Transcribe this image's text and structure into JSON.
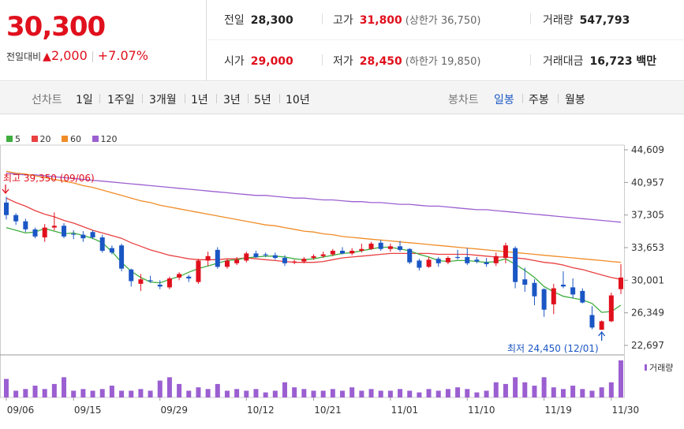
{
  "quote": {
    "price": "30,300",
    "change_label": "전일대비",
    "change_arrow": "▲",
    "change_amount": "2,000",
    "change_percent": "+7.07%",
    "prev_close": {
      "label": "전일",
      "value": "28,300"
    },
    "high": {
      "label": "고가",
      "value": "31,800",
      "limit": "(상한가 36,750)"
    },
    "volume": {
      "label": "거래량",
      "value": "547,793"
    },
    "open": {
      "label": "시가",
      "value": "29,000"
    },
    "low": {
      "label": "저가",
      "value": "28,450",
      "limit": "(하한가 19,850)"
    },
    "amount": {
      "label": "거래대금",
      "value": "16,723 백만"
    }
  },
  "period_bar": {
    "line_label": "선차트",
    "line_options": [
      "1일",
      "1주일",
      "3개월",
      "1년",
      "3년",
      "5년",
      "10년"
    ],
    "candle_label": "봉차트",
    "candle_options": [
      "일봉",
      "주봉",
      "월봉"
    ],
    "candle_selected": "일봉"
  },
  "legend": [
    {
      "label": "5",
      "color": "#3fae3f"
    },
    {
      "label": "20",
      "color": "#e94141"
    },
    {
      "label": "60",
      "color": "#f08c28"
    },
    {
      "label": "120",
      "color": "#9b5fd1"
    }
  ],
  "colors": {
    "up": "#e0101d",
    "down": "#1a56c4",
    "volume": "#9b5fd1"
  },
  "annotations": {
    "high": "최고 39,350 (09/06)",
    "low": "최저 24,450 (12/01)"
  },
  "chart_data": {
    "type": "candlestick",
    "y_ticks": [
      "44,609",
      "40,957",
      "37,305",
      "33,653",
      "30,001",
      "26,349",
      "22,697"
    ],
    "y_tick_values": [
      44609,
      40957,
      37305,
      33653,
      30001,
      26349,
      22697
    ],
    "x_tick_labels": [
      "09/06",
      "09/15",
      "09/29",
      "10/12",
      "10/21",
      "11/01",
      "11/10",
      "11/19",
      "11/30"
    ],
    "volume_label": "거래량",
    "ylim": [
      22000,
      45300
    ],
    "candles": [
      [
        38700,
        39350,
        36800,
        37300
      ],
      [
        37300,
        37500,
        36200,
        36600
      ],
      [
        36600,
        36900,
        35400,
        35700
      ],
      [
        35700,
        35900,
        34700,
        34900
      ],
      [
        34800,
        36300,
        34300,
        35900
      ],
      [
        35900,
        37600,
        35600,
        36100
      ],
      [
        36100,
        36400,
        34700,
        34900
      ],
      [
        35200,
        35600,
        34600,
        35100
      ],
      [
        35100,
        35500,
        34300,
        34700
      ],
      [
        35400,
        35600,
        34600,
        34800
      ],
      [
        34800,
        35100,
        33100,
        33300
      ],
      [
        33600,
        33900,
        32900,
        33100
      ],
      [
        33900,
        34100,
        31000,
        31300
      ],
      [
        31200,
        31300,
        29300,
        29900
      ],
      [
        29600,
        30700,
        28800,
        30100
      ],
      [
        30000,
        30500,
        29700,
        29900
      ],
      [
        29500,
        30000,
        29000,
        29300
      ],
      [
        29200,
        30400,
        29000,
        30200
      ],
      [
        30300,
        30900,
        30000,
        30700
      ],
      [
        30400,
        30600,
        29800,
        30200
      ],
      [
        29800,
        32400,
        29600,
        32200
      ],
      [
        32200,
        33200,
        31600,
        32700
      ],
      [
        33400,
        33700,
        31300,
        31500
      ],
      [
        31500,
        32400,
        31300,
        32200
      ],
      [
        31900,
        32600,
        31700,
        32300
      ],
      [
        32200,
        33200,
        32000,
        33000
      ],
      [
        33000,
        33300,
        32500,
        32600
      ],
      [
        32900,
        33100,
        32600,
        32800
      ],
      [
        32800,
        33100,
        32300,
        32500
      ],
      [
        32500,
        32800,
        31600,
        31900
      ],
      [
        32100,
        32300,
        31800,
        32100
      ],
      [
        32100,
        32600,
        31900,
        32400
      ],
      [
        32500,
        32900,
        32300,
        32700
      ],
      [
        32700,
        33200,
        32500,
        32900
      ],
      [
        32900,
        33500,
        32700,
        33300
      ],
      [
        33300,
        33700,
        32900,
        33000
      ],
      [
        33000,
        33600,
        32800,
        33300
      ],
      [
        33300,
        34100,
        33100,
        33500
      ],
      [
        33500,
        34300,
        33400,
        34100
      ],
      [
        34200,
        34500,
        33300,
        33500
      ],
      [
        33500,
        34100,
        33200,
        33800
      ],
      [
        33800,
        34400,
        33200,
        33400
      ],
      [
        33500,
        33600,
        31800,
        32000
      ],
      [
        32200,
        32400,
        31100,
        31400
      ],
      [
        31500,
        32600,
        31400,
        32300
      ],
      [
        32400,
        32600,
        31500,
        31900
      ],
      [
        32000,
        32700,
        31800,
        32500
      ],
      [
        32600,
        33400,
        32300,
        32500
      ],
      [
        32600,
        33600,
        31700,
        31900
      ],
      [
        32300,
        32600,
        31900,
        32100
      ],
      [
        32000,
        32500,
        31500,
        31800
      ],
      [
        31900,
        33100,
        31600,
        32700
      ],
      [
        32500,
        34200,
        31900,
        33900
      ],
      [
        33600,
        33800,
        29100,
        29800
      ],
      [
        30100,
        31400,
        28700,
        29500
      ],
      [
        29700,
        30100,
        27200,
        28200
      ],
      [
        29000,
        29100,
        25900,
        26700
      ],
      [
        27300,
        29600,
        26200,
        29100
      ],
      [
        29500,
        31000,
        29100,
        29300
      ],
      [
        29200,
        30200,
        28000,
        28400
      ],
      [
        28800,
        29100,
        27400,
        27500
      ],
      [
        26100,
        27100,
        24500,
        24700
      ],
      [
        24450,
        25500,
        24450,
        25400
      ],
      [
        25400,
        28600,
        25300,
        28300
      ],
      [
        29000,
        31800,
        28450,
        30300
      ]
    ],
    "volume": [
      11,
      4,
      5,
      7,
      5,
      8,
      12,
      4,
      5,
      4,
      5,
      7,
      4,
      4,
      5,
      4,
      10,
      12,
      8,
      4,
      6,
      5,
      8,
      4,
      5,
      4,
      5,
      3,
      4,
      9,
      6,
      5,
      4,
      4,
      5,
      4,
      6,
      4,
      5,
      4,
      4,
      5,
      4,
      3,
      5,
      4,
      5,
      6,
      5,
      3,
      4,
      9,
      8,
      12,
      9,
      7,
      12,
      6,
      5,
      7,
      5,
      4,
      6,
      9,
      22
    ],
    "ma": {
      "5": [
        35900,
        35600,
        35300,
        35400,
        35800,
        35500,
        35200,
        35300,
        35000,
        34700,
        34200,
        33200,
        32000,
        31000,
        30300,
        29800,
        29700,
        30100,
        30400,
        30900,
        31300,
        31600,
        31900,
        32200,
        32300,
        32500,
        32600,
        32700,
        32700,
        32600,
        32400,
        32300,
        32400,
        32600,
        32800,
        33000,
        33100,
        33300,
        33500,
        33700,
        33700,
        33500,
        33300,
        32900,
        32600,
        32200,
        32100,
        32200,
        32200,
        32100,
        32000,
        32100,
        32400,
        31800,
        31100,
        30300,
        29300,
        28700,
        28200,
        28000,
        27800,
        27400,
        26400,
        26500,
        27200
      ],
      "20": [
        39200,
        38700,
        38300,
        37800,
        37400,
        37100,
        36700,
        36400,
        36000,
        35600,
        35300,
        35000,
        34700,
        34200,
        33800,
        33400,
        33100,
        32800,
        32600,
        32400,
        32300,
        32300,
        32300,
        32400,
        32400,
        32500,
        32400,
        32300,
        32200,
        32100,
        32000,
        32000,
        32000,
        32100,
        32300,
        32500,
        32600,
        32700,
        32800,
        32900,
        33000,
        33000,
        33000,
        33000,
        33000,
        32900,
        32900,
        32900,
        32900,
        32800,
        32700,
        32600,
        32600,
        32500,
        32400,
        32200,
        32000,
        31900,
        31700,
        31400,
        31200,
        30900,
        30600,
        30300,
        30100
      ],
      "60": [
        42200,
        42000,
        41900,
        41700,
        41500,
        41300,
        41100,
        40900,
        40600,
        40400,
        40100,
        39800,
        39500,
        39200,
        38900,
        38700,
        38400,
        38200,
        38000,
        37800,
        37600,
        37400,
        37200,
        37000,
        36800,
        36600,
        36400,
        36200,
        36100,
        35900,
        35700,
        35500,
        35400,
        35200,
        35100,
        34900,
        34800,
        34700,
        34600,
        34500,
        34400,
        34300,
        34200,
        34100,
        34000,
        33900,
        33800,
        33700,
        33600,
        33500,
        33400,
        33300,
        33200,
        33100,
        33000,
        32900,
        32800,
        32700,
        32600,
        32500,
        32400,
        32300,
        32200,
        32100,
        32000
      ],
      "120": [
        42000,
        41900,
        41800,
        41800,
        41700,
        41600,
        41500,
        41400,
        41300,
        41200,
        41100,
        41000,
        40900,
        40800,
        40700,
        40600,
        40500,
        40400,
        40300,
        40200,
        40100,
        40000,
        39900,
        39800,
        39700,
        39600,
        39500,
        39500,
        39400,
        39300,
        39200,
        39200,
        39100,
        39000,
        39000,
        38900,
        38800,
        38800,
        38700,
        38700,
        38600,
        38500,
        38500,
        38400,
        38300,
        38300,
        38200,
        38100,
        38000,
        37900,
        37900,
        37800,
        37700,
        37600,
        37500,
        37400,
        37300,
        37200,
        37100,
        37000,
        36900,
        36800,
        36700,
        36600,
        36500
      ]
    }
  }
}
